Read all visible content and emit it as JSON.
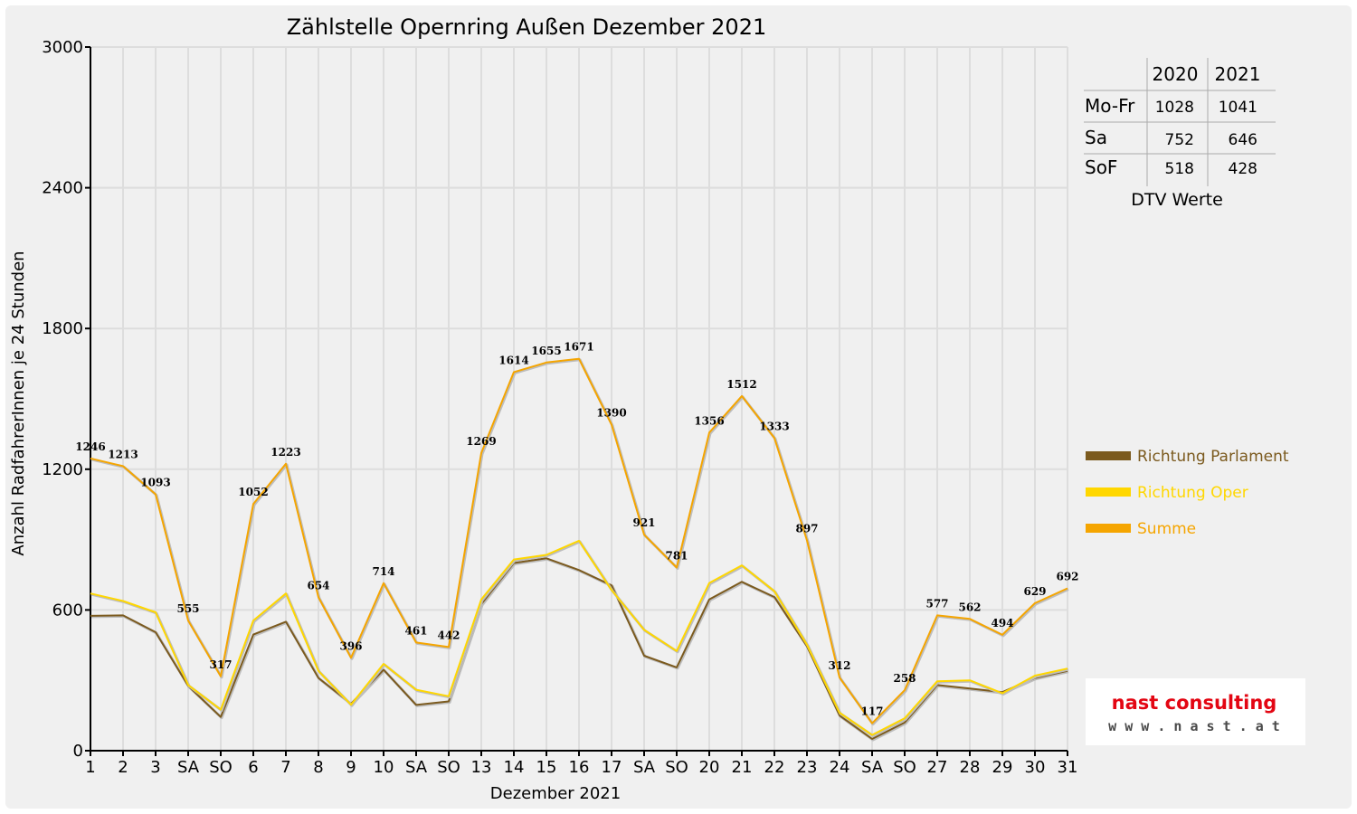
{
  "chart_data": {
    "type": "line",
    "title": "Zählstelle Opernring Außen Dezember 2021",
    "xlabel": "Dezember 2021",
    "ylabel": "Anzahl RadfahrerInnen je 24 Stunden",
    "ylim": [
      0,
      3000
    ],
    "yticks": [
      "0",
      "600",
      "1200",
      "1800",
      "2400",
      "3000"
    ],
    "categories": [
      "1",
      "2",
      "3",
      "SA",
      "SO",
      "6",
      "7",
      "8",
      "9",
      "10",
      "SA",
      "SO",
      "13",
      "14",
      "15",
      "16",
      "17",
      "SA",
      "SO",
      "20",
      "21",
      "22",
      "23",
      "24",
      "SA",
      "SO",
      "27",
      "28",
      "29",
      "30",
      "31"
    ],
    "category_colors": [
      "#000000",
      "#000000",
      "#000000",
      "#000000",
      "#ff0000",
      "#000000",
      "#000000",
      "#ff0000",
      "#000000",
      "#000000",
      "#000000",
      "#ff0000",
      "#000000",
      "#000000",
      "#000000",
      "#000000",
      "#000000",
      "#000000",
      "#ff0000",
      "#000000",
      "#000000",
      "#000000",
      "#000000",
      "#000000",
      "#000000",
      "#ff0000",
      "#000000",
      "#000000",
      "#000000",
      "#000000",
      "#000000"
    ],
    "grid": true,
    "legend_position": "right",
    "series": [
      {
        "name": "Richtung Parlament",
        "color": "#7b5a1e",
        "values": [
          575,
          577,
          505,
          276,
          144,
          495,
          550,
          310,
          200,
          345,
          195,
          210,
          625,
          800,
          820,
          770,
          705,
          405,
          355,
          645,
          720,
          655,
          445,
          150,
          50,
          120,
          280,
          265,
          250,
          310,
          340
        ]
      },
      {
        "name": "Richtung Oper",
        "color": "#ffd700",
        "values": [
          670,
          638,
          590,
          280,
          175,
          555,
          670,
          340,
          196,
          370,
          260,
          232,
          645,
          815,
          835,
          895,
          685,
          515,
          425,
          715,
          790,
          680,
          452,
          162,
          67,
          138,
          296,
          300,
          245,
          320,
          350
        ]
      },
      {
        "name": "Summe",
        "color": "#f5a500",
        "values": [
          1246,
          1213,
          1093,
          555,
          317,
          1052,
          1223,
          654,
          396,
          714,
          461,
          442,
          1269,
          1614,
          1655,
          1671,
          1390,
          921,
          781,
          1356,
          1512,
          1333,
          897,
          312,
          117,
          258,
          577,
          562,
          494,
          629,
          692
        ]
      }
    ],
    "data_labels": [
      "1246",
      "1213",
      "1093",
      "555",
      "317",
      "1052",
      "1223",
      "654",
      "396",
      "714",
      "461",
      "442",
      "1269",
      "1614",
      "1655",
      "1671",
      "1390",
      "921",
      "781",
      "1356",
      "1512",
      "1333",
      "897",
      "312",
      "117",
      "258",
      "577",
      "562",
      "494",
      "629",
      "692"
    ]
  },
  "dtv_table": {
    "headers": [
      "2020",
      "2021"
    ],
    "rows": [
      {
        "label": "Mo-Fr",
        "v2020": "1028",
        "v2021": "1041"
      },
      {
        "label": "Sa",
        "v2020": "752",
        "v2021": "646"
      },
      {
        "label": "SoF",
        "v2020": "518",
        "v2021": "428"
      }
    ],
    "caption": "DTV Werte"
  },
  "logo": {
    "brand": "nast consulting",
    "url": "w w w . n a s t . a t",
    "brand_color": "#e30613",
    "text_color": "#4a4a4a"
  }
}
